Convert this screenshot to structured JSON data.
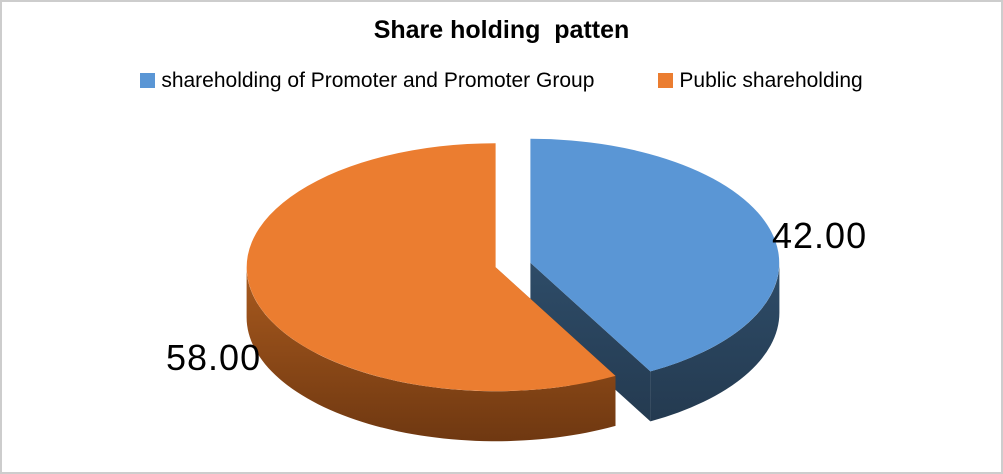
{
  "window": {
    "background": "#FFFFFF",
    "border_color": "#CDCDCD"
  },
  "chart_data": {
    "type": "pie",
    "style": "3d-exploded",
    "title": "Share holding  patten",
    "legend_position": "top-center",
    "text_color": "#000000",
    "total": 100,
    "slices": [
      {
        "id": "promoter",
        "label": "shareholding of Promoter and Promoter Group",
        "value": 42.0,
        "data_label": "42.00",
        "color": "#5A96D5",
        "side_top": "#2E4C68",
        "side_bottom": "#243A50"
      },
      {
        "id": "public",
        "label": "Public shareholding",
        "value": 58.0,
        "data_label": "58.00",
        "color": "#EB7D30",
        "side_top": "#A95A1E",
        "side_bottom": "#6F3811"
      }
    ]
  }
}
